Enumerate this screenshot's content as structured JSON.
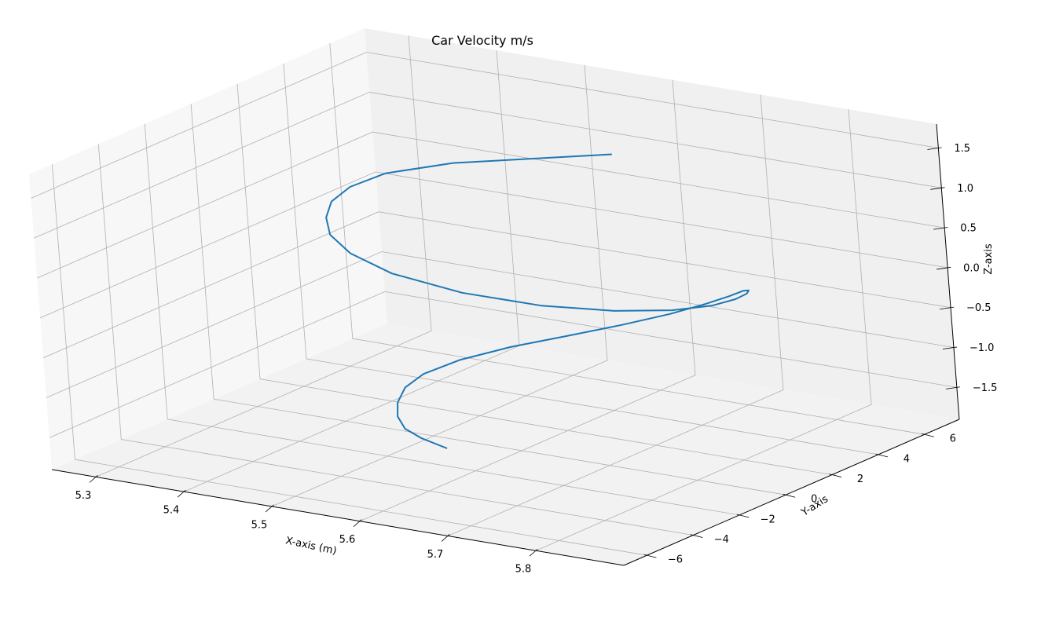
{
  "chart_data": {
    "type": "line",
    "projection": "3d",
    "title": "Car Velocity m/s",
    "xlabel": "X-axis (m)",
    "ylabel": "Y-axis",
    "zlabel": "Z-axis",
    "grid": true,
    "xlim": [
      5.25,
      5.9
    ],
    "ylim": [
      -7,
      7.5
    ],
    "zlim": [
      -1.9,
      1.8
    ],
    "x_ticks": [
      5.3,
      5.4,
      5.5,
      5.6,
      5.7,
      5.8
    ],
    "x_tick_labels": [
      "5.3",
      "5.4",
      "5.5",
      "5.6",
      "5.7",
      "5.8"
    ],
    "y_ticks": [
      -6,
      -4,
      -2,
      0,
      2,
      4,
      6
    ],
    "y_tick_labels": [
      "−6",
      "−4",
      "−2",
      "0",
      "2",
      "4",
      "6"
    ],
    "z_ticks": [
      -1.5,
      -1.0,
      -0.5,
      0.0,
      0.5,
      1.0,
      1.5
    ],
    "z_tick_labels": [
      "−1.5",
      "−1.0",
      "−0.5",
      "0.0",
      "0.5",
      "1.0",
      "1.5"
    ],
    "series_color": "#1f77b4",
    "series": [
      {
        "x": [
          5.55,
          5.527,
          5.514,
          5.508,
          5.507,
          5.511,
          5.524,
          5.554,
          5.599,
          5.651,
          5.703,
          5.75,
          5.785,
          5.81,
          5.827,
          5.837,
          5.84,
          5.835,
          5.817,
          5.782,
          5.728,
          5.655,
          5.572,
          5.495,
          5.445,
          5.415,
          5.401,
          5.397,
          5.408,
          5.438,
          5.505,
          5.675
        ],
        "y": [
          -1.3,
          -1.5,
          -1.69,
          -1.74,
          -1.66,
          -1.44,
          -1.1,
          -0.6,
          -0.1,
          0.4,
          0.84,
          1.19,
          1.4,
          1.52,
          1.52,
          1.4,
          1.2,
          0.9,
          0.53,
          0.12,
          -0.33,
          -0.72,
          -0.97,
          -1.05,
          -0.9,
          -0.6,
          -0.2,
          0.22,
          0.64,
          1.08,
          1.5,
          2.0
        ],
        "z": [
          -1.8,
          -1.69,
          -1.57,
          -1.42,
          -1.26,
          -1.09,
          -0.94,
          -0.77,
          -0.59,
          -0.42,
          -0.24,
          -0.06,
          0.1,
          0.23,
          0.33,
          0.37,
          0.36,
          0.32,
          0.25,
          0.18,
          0.13,
          0.11,
          0.15,
          0.26,
          0.4,
          0.54,
          0.68,
          0.82,
          0.97,
          1.14,
          1.34,
          1.7
        ]
      }
    ]
  }
}
